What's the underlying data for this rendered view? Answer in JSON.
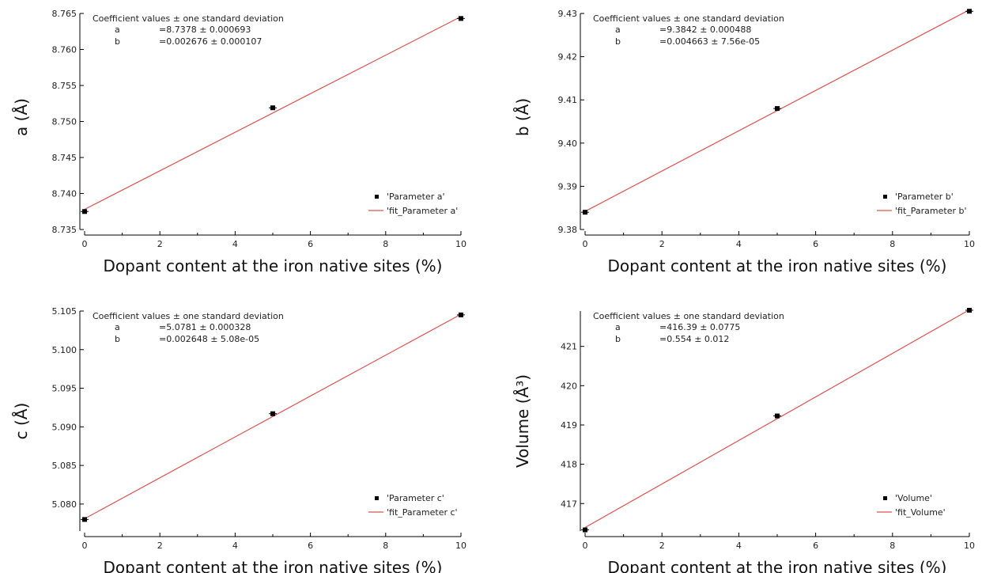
{
  "chart_data": [
    {
      "type": "scatter",
      "xlabel": "Dopant content at the iron native sites (%)",
      "ylabel": "a (Å)",
      "xlim": [
        0,
        10
      ],
      "ylim": [
        8.735,
        8.765
      ],
      "xticks": [
        0,
        2,
        4,
        6,
        8,
        10
      ],
      "yticks": [
        8.735,
        8.74,
        8.745,
        8.75,
        8.755,
        8.76,
        8.765
      ],
      "ytick_labels": [
        "8.735",
        "8.740",
        "8.745",
        "8.750",
        "8.755",
        "8.760",
        "8.765"
      ],
      "annotation": {
        "header": "Coefficient values ± one standard deviation",
        "rows": [
          {
            "name": "a",
            "value": "=8.7378 ± 0.000693"
          },
          {
            "name": "b",
            "value": "=0.002676 ± 0.000107"
          }
        ]
      },
      "series": [
        {
          "name": "'Parameter a'",
          "x": [
            0,
            5,
            10
          ],
          "y": [
            8.7375,
            8.7519,
            8.7643
          ]
        },
        {
          "name": "'fit_Parameter a'",
          "fit": {
            "a": 8.7378,
            "b": 0.002676
          }
        }
      ],
      "colors": {
        "points": "#000000",
        "fit": "#d9534f"
      },
      "legend": "bottom-right"
    },
    {
      "type": "scatter",
      "xlabel": "Dopant content at the iron native sites (%)",
      "ylabel": "b (Å)",
      "xlim": [
        0,
        10
      ],
      "ylim": [
        9.38,
        9.43
      ],
      "xticks": [
        0,
        2,
        4,
        6,
        8,
        10
      ],
      "yticks": [
        9.38,
        9.39,
        9.4,
        9.41,
        9.42,
        9.43
      ],
      "ytick_labels": [
        "9.38",
        "9.39",
        "9.40",
        "9.41",
        "9.42",
        "9.43"
      ],
      "annotation": {
        "header": "Coefficient values ± one standard deviation",
        "rows": [
          {
            "name": "a",
            "value": "=9.3842 ± 0.000488"
          },
          {
            "name": "b",
            "value": "=0.004663 ± 7.56e-05"
          }
        ]
      },
      "series": [
        {
          "name": "'Parameter b'",
          "x": [
            0,
            5,
            10
          ],
          "y": [
            9.384,
            9.408,
            9.4305
          ]
        },
        {
          "name": "'fit_Parameter b'",
          "fit": {
            "a": 9.3842,
            "b": 0.004663
          }
        }
      ],
      "colors": {
        "points": "#000000",
        "fit": "#d9534f"
      },
      "legend": "bottom-right"
    },
    {
      "type": "scatter",
      "xlabel": "Dopant content at the iron native sites (%)",
      "ylabel": "c (Å)",
      "xlim": [
        0,
        10
      ],
      "ylim": [
        5.0765,
        5.105
      ],
      "xticks": [
        0,
        2,
        4,
        6,
        8,
        10
      ],
      "yticks": [
        5.08,
        5.085,
        5.09,
        5.095,
        5.1,
        5.105
      ],
      "ytick_labels": [
        "5.080",
        "5.085",
        "5.090",
        "5.095",
        "5.100",
        "5.105"
      ],
      "annotation": {
        "header": "Coefficient values ± one standard deviation",
        "rows": [
          {
            "name": "a",
            "value": "=5.0781 ± 0.000328"
          },
          {
            "name": "b",
            "value": "=0.002648 ± 5.08e-05"
          }
        ]
      },
      "series": [
        {
          "name": "'Parameter c'",
          "x": [
            0,
            5,
            10
          ],
          "y": [
            5.078,
            5.0917,
            5.1045
          ]
        },
        {
          "name": "'fit_Parameter c'",
          "fit": {
            "a": 5.0781,
            "b": 0.002648
          }
        }
      ],
      "colors": {
        "points": "#000000",
        "fit": "#d9534f"
      },
      "legend": "bottom-right"
    },
    {
      "type": "scatter",
      "xlabel": "Dopant content at the iron native sites (%)",
      "ylabel": "Volume (Å³)",
      "xlim": [
        0,
        10
      ],
      "ylim": [
        416.3,
        421.9
      ],
      "xticks": [
        0,
        2,
        4,
        6,
        8,
        10
      ],
      "yticks": [
        417,
        418,
        419,
        420,
        421
      ],
      "ytick_labels": [
        "417",
        "418",
        "419",
        "420",
        "421"
      ],
      "annotation": {
        "header": "Coefficient values ± one standard deviation",
        "rows": [
          {
            "name": "a",
            "value": "=416.39 ± 0.0775"
          },
          {
            "name": "b",
            "value": "=0.554 ± 0.012"
          }
        ]
      },
      "series": [
        {
          "name": "'Volume'",
          "x": [
            0,
            5,
            10
          ],
          "y": [
            416.33,
            419.23,
            421.92
          ]
        },
        {
          "name": "'fit_Volume'",
          "fit": {
            "a": 416.39,
            "b": 0.554
          }
        }
      ],
      "colors": {
        "points": "#000000",
        "fit": "#d9534f"
      },
      "legend": "bottom-right"
    }
  ]
}
